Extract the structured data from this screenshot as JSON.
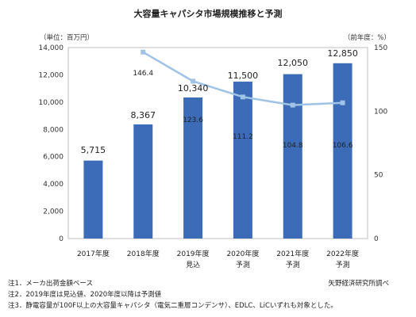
{
  "chart_data": {
    "type": "bar",
    "title": "大容量キャパシタ市場規模推移と予測",
    "left_unit_label": "（単位：百万円）",
    "right_unit_label": "（前年度：%）",
    "categories": [
      {
        "year": "2017年度",
        "sub": ""
      },
      {
        "year": "2018年度",
        "sub": ""
      },
      {
        "year": "2019年度",
        "sub": "見込"
      },
      {
        "year": "2020年度",
        "sub": "予測"
      },
      {
        "year": "2021年度",
        "sub": "予測"
      },
      {
        "year": "2022年度",
        "sub": "予測"
      }
    ],
    "series": [
      {
        "values": [
          5715,
          8367,
          10340,
          11500,
          12050,
          12850
        ],
        "labels": [
          "5,715",
          "8,367",
          "10,340",
          "11,500",
          "12,050",
          "12,850"
        ],
        "color": "#3c6cb8",
        "axis": "left",
        "kind": "bar"
      },
      {
        "values": [
          null,
          146.4,
          123.6,
          111.2,
          104.8,
          106.6
        ],
        "labels": [
          "",
          "146.4",
          "123.6",
          "111.2",
          "104.8",
          "106.6"
        ],
        "color": "#9ec3e6",
        "axis": "right",
        "kind": "line"
      }
    ],
    "y_left": {
      "min": 0,
      "max": 14000,
      "step": 2000,
      "ticks": [
        "0",
        "2,000",
        "4,000",
        "6,000",
        "8,000",
        "10,000",
        "12,000",
        "14,000"
      ]
    },
    "y_right": {
      "min": 0,
      "max": 150,
      "step": 50,
      "ticks": [
        "0",
        "50",
        "100",
        "150"
      ]
    },
    "grid": false
  },
  "notes": {
    "n1": "注1．メーカ出荷金額ベース",
    "n2": "注2．2019年度は見込値、2020年度以降は予測値",
    "n3": "注3．静電容量が100F以上の大容量キャパシタ（電気二重層コンデンサ）、EDLC、LiCいずれも対象とした。",
    "source": "矢野経済研究所調べ"
  }
}
